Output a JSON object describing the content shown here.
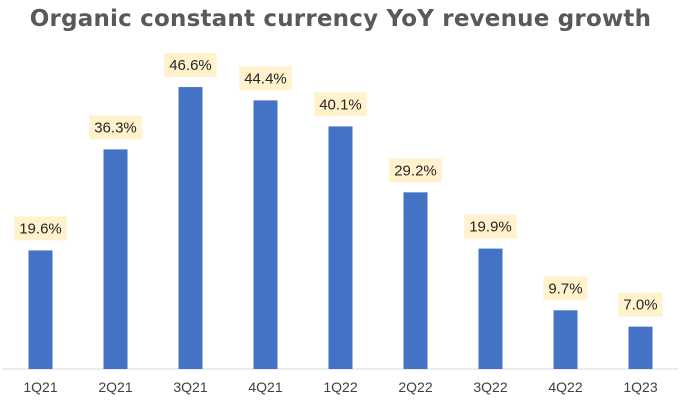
{
  "chart_data": {
    "type": "bar",
    "title": "Organic constant currency YoY revenue growth",
    "categories": [
      "1Q21",
      "2Q21",
      "3Q21",
      "4Q21",
      "1Q22",
      "2Q22",
      "3Q22",
      "4Q22",
      "1Q23"
    ],
    "values": [
      19.6,
      36.3,
      46.6,
      44.4,
      40.1,
      29.2,
      19.9,
      9.7,
      7.0
    ],
    "data_labels": [
      "19.6%",
      "36.3%",
      "46.6%",
      "44.4%",
      "40.1%",
      "29.2%",
      "19.9%",
      "9.7%",
      "7.0%"
    ],
    "xlabel": "",
    "ylabel": "",
    "ylim": [
      0,
      52
    ],
    "grid": false,
    "legend": "none",
    "bar_color": "#4472C4",
    "label_bg_color": "#FFF2CC",
    "axis_color": "#D9D9D9"
  }
}
